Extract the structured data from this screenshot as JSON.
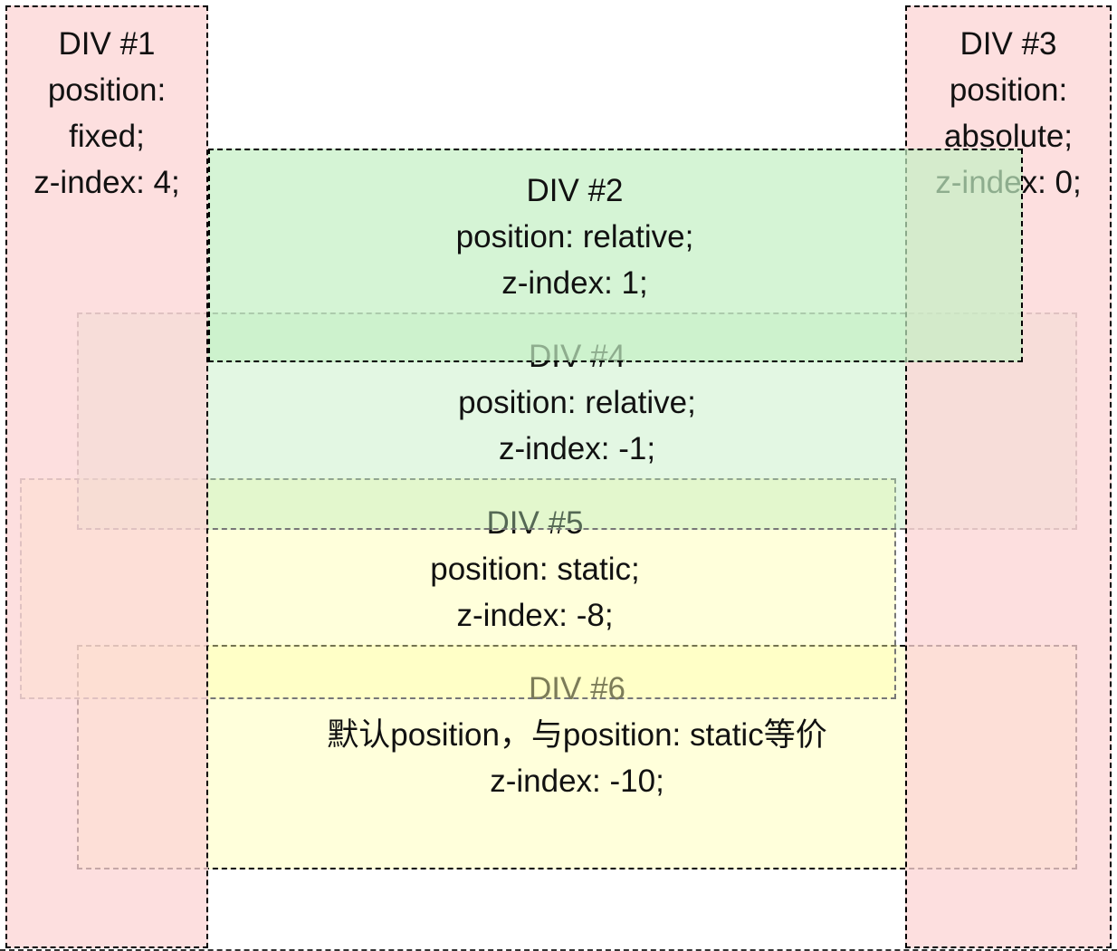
{
  "colors": {
    "pink_strip": "#fbdfdf",
    "green_div2": "#d5f5d5",
    "green_div4": "#e3f7e3",
    "yellow_band": "#ffffdb",
    "border_dark": "#000000",
    "border_gray": "#777777",
    "text": "#111111",
    "page_background": "#ffffff"
  },
  "boxes": [
    {
      "id": "div1",
      "title": "DIV #1",
      "lines": [
        "position:",
        "fixed;",
        "z-index: 4;"
      ]
    },
    {
      "id": "div2",
      "title": "DIV #2",
      "lines": [
        "position: relative;",
        "z-index: 1;"
      ]
    },
    {
      "id": "div3",
      "title": "DIV #3",
      "lines": [
        "position:",
        "absolute;",
        "z-index: 0;"
      ]
    },
    {
      "id": "div4",
      "title": "DIV #4",
      "lines": [
        "position: relative;",
        "z-index: -1;"
      ]
    },
    {
      "id": "div5",
      "title": "DIV #5",
      "lines": [
        "position: static;",
        "z-index: -8;"
      ]
    },
    {
      "id": "div6",
      "title": "DIV #6",
      "lines": [
        "默认position，与position: static等价",
        "z-index: -10;"
      ]
    }
  ]
}
